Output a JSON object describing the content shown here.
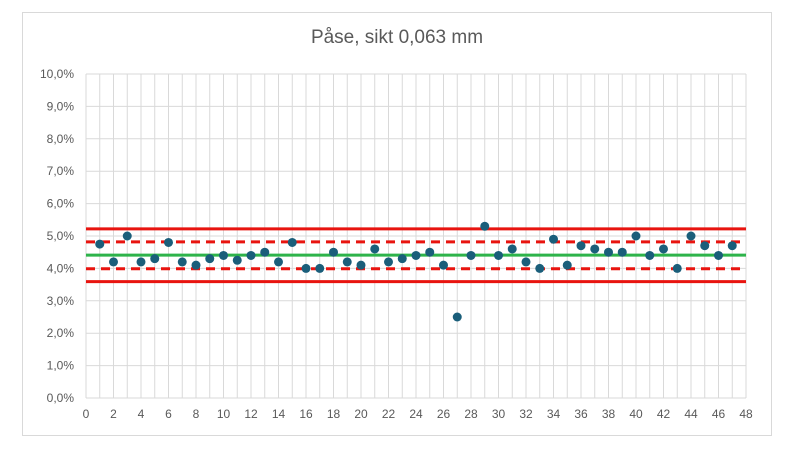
{
  "chart_data": {
    "type": "scatter",
    "title": "Påse, sikt 0,063 mm",
    "xlabel": "",
    "ylabel": "",
    "xlim": [
      0,
      48
    ],
    "ylim": [
      0,
      10
    ],
    "x_ticks": [
      "0",
      "2",
      "4",
      "6",
      "8",
      "10",
      "12",
      "14",
      "16",
      "18",
      "20",
      "22",
      "24",
      "26",
      "28",
      "30",
      "32",
      "34",
      "36",
      "38",
      "40",
      "42",
      "44",
      "46",
      "48"
    ],
    "y_ticks": [
      "0,0%",
      "1,0%",
      "2,0%",
      "3,0%",
      "4,0%",
      "5,0%",
      "6,0%",
      "7,0%",
      "8,0%",
      "9,0%",
      "10,0%"
    ],
    "grid": true,
    "colors": {
      "points": "#1a5e7a",
      "mean": "#2db34a",
      "limits": "#e8140f",
      "grid": "#d9d9d9"
    },
    "series": [
      {
        "x": [
          1,
          2,
          3,
          4,
          5,
          6,
          7,
          8,
          9,
          10,
          11,
          12,
          13,
          14,
          15,
          16,
          17,
          18,
          19,
          20,
          21,
          22,
          23,
          24,
          25,
          26,
          27,
          28,
          29,
          30,
          31,
          32,
          33,
          34,
          35,
          36,
          37,
          38,
          39,
          40,
          41,
          42,
          43,
          44,
          45,
          46,
          47
        ],
        "values": [
          4.75,
          4.2,
          5.0,
          4.2,
          4.3,
          4.8,
          4.2,
          4.1,
          4.3,
          4.4,
          4.25,
          4.4,
          4.5,
          4.2,
          4.8,
          4.0,
          4.0,
          4.5,
          4.2,
          4.1,
          4.6,
          4.2,
          4.3,
          4.4,
          4.5,
          4.1,
          2.5,
          4.4,
          5.3,
          4.4,
          4.6,
          4.2,
          4.0,
          4.9,
          4.1,
          4.7,
          4.6,
          4.5,
          4.5,
          5.0,
          4.4,
          4.6,
          4.0,
          5.0,
          4.7,
          4.4,
          4.7
        ]
      }
    ],
    "reference_lines": [
      {
        "style": "solid",
        "color": "#e8140f",
        "value": 5.22
      },
      {
        "style": "dashed",
        "color": "#e8140f",
        "value": 4.82
      },
      {
        "style": "solid",
        "color": "#2db34a",
        "value": 4.41
      },
      {
        "style": "dashed",
        "color": "#e8140f",
        "value": 3.99
      },
      {
        "style": "solid",
        "color": "#e8140f",
        "value": 3.59
      }
    ]
  }
}
